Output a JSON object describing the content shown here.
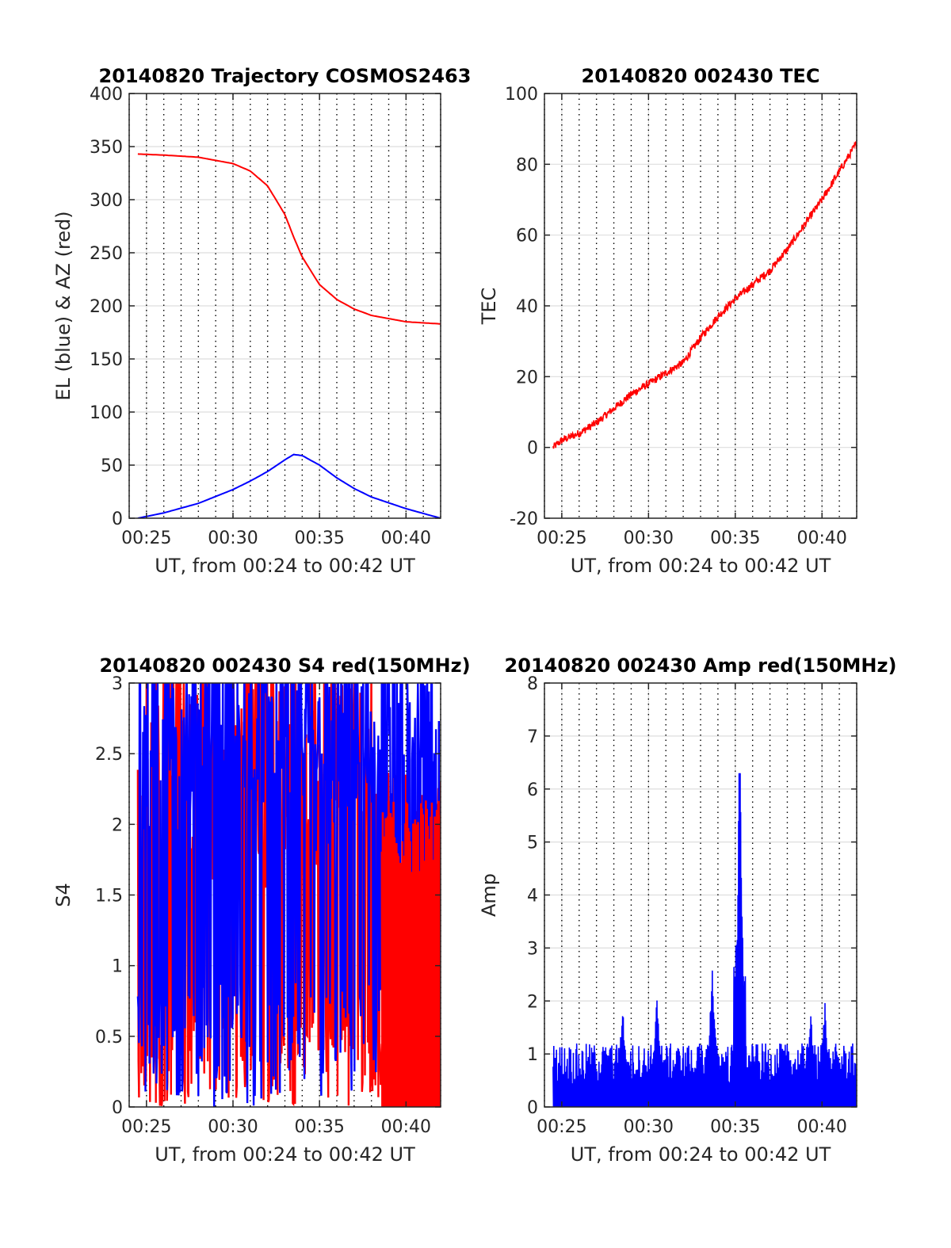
{
  "chart_data": [
    {
      "type": "line",
      "title": "20140820 Trajectory COSMOS2463",
      "xlabel": "UT, from 00:24 to 00:42 UT",
      "ylabel": "EL (blue) & AZ (red)",
      "xlim": [
        "00:24",
        "00:42"
      ],
      "xticks": [
        "00:25",
        "00:30",
        "00:35",
        "00:40"
      ],
      "ylim": [
        0,
        400
      ],
      "yticks": [
        "0",
        "50",
        "100",
        "150",
        "200",
        "250",
        "300",
        "350",
        "400"
      ],
      "grid": true,
      "x": [
        "00:24:30",
        "00:26:00",
        "00:28:00",
        "00:30:00",
        "00:31:00",
        "00:32:00",
        "00:33:00",
        "00:33:30",
        "00:34:00",
        "00:35:00",
        "00:36:00",
        "00:37:00",
        "00:38:00",
        "00:40:00",
        "00:42:00"
      ],
      "series": [
        {
          "color": "#0000ff",
          "values": [
            0,
            5,
            14,
            27,
            35,
            44,
            55,
            60,
            59,
            50,
            38,
            28,
            20,
            9,
            0
          ]
        },
        {
          "color": "#ff0000",
          "values": [
            343,
            342,
            340,
            334,
            327,
            313,
            286,
            265,
            246,
            220,
            206,
            197,
            191,
            185,
            183
          ]
        }
      ]
    },
    {
      "type": "line",
      "title": "20140820 002430 TEC",
      "xlabel": "UT, from 00:24 to 00:42 UT",
      "ylabel": "TEC",
      "xlim": [
        "00:24",
        "00:42"
      ],
      "xticks": [
        "00:25",
        "00:30",
        "00:35",
        "00:40"
      ],
      "ylim": [
        -20,
        100
      ],
      "yticks": [
        "-20",
        "0",
        "20",
        "40",
        "60",
        "80",
        "100"
      ],
      "grid": true,
      "x": [
        "00:24:30",
        "00:25:00",
        "00:26:00",
        "00:27:00",
        "00:28:00",
        "00:29:00",
        "00:30:00",
        "00:31:00",
        "00:32:00",
        "00:33:00",
        "00:34:00",
        "00:35:00",
        "00:36:00",
        "00:37:00",
        "00:38:00",
        "00:39:00",
        "00:40:00",
        "00:41:00",
        "00:42:00"
      ],
      "series": [
        {
          "color": "#ff0000",
          "values": [
            0,
            2,
            4,
            7,
            11,
            15,
            18,
            21,
            24,
            31,
            37,
            42,
            46,
            50,
            56,
            63,
            70,
            78,
            86
          ]
        }
      ]
    },
    {
      "type": "line",
      "title": "20140820 002430 S4 red(150MHz)",
      "xlabel": "UT, from 00:24 to 00:42 UT",
      "ylabel": "S4",
      "xlim": [
        "00:24",
        "00:42"
      ],
      "xticks": [
        "00:25",
        "00:30",
        "00:35",
        "00:40"
      ],
      "ylim": [
        0,
        3
      ],
      "yticks": [
        "0",
        "0.5",
        "1",
        "1.5",
        "2",
        "2.5",
        "3"
      ],
      "grid": true,
      "series": [
        {
          "color": "#ff0000",
          "values_note": "dense noisy signal, mostly 0 to 3"
        },
        {
          "color": "#0000ff",
          "values_note": "dense noisy signal, mostly 0 to 3"
        }
      ]
    },
    {
      "type": "line",
      "title": "20140820 002430 Amp red(150MHz)",
      "xlabel": "UT, from 00:24 to 00:42 UT",
      "ylabel": "Amp",
      "xlim": [
        "00:24",
        "00:42"
      ],
      "xticks": [
        "00:25",
        "00:30",
        "00:35",
        "00:40"
      ],
      "ylim": [
        0,
        8
      ],
      "yticks": [
        "0",
        "1",
        "2",
        "3",
        "4",
        "5",
        "6",
        "7",
        "8"
      ],
      "grid": true,
      "series": [
        {
          "color": "#0000ff",
          "values_note": "noise floor ~1, peaks: 1.9 at 00:28, 2.1 at 00:30:30, 2.7 at 00:33:30, 6.3 at 00:35:10, 1.9 at 00:39, 2.1 at 00:40"
        }
      ],
      "peaks": [
        {
          "x": "00:28:30",
          "y": 1.9
        },
        {
          "x": "00:30:30",
          "y": 2.1
        },
        {
          "x": "00:33:40",
          "y": 2.7
        },
        {
          "x": "00:35:15",
          "y": 6.3
        },
        {
          "x": "00:39:20",
          "y": 1.9
        },
        {
          "x": "00:40:10",
          "y": 2.1
        }
      ]
    }
  ]
}
